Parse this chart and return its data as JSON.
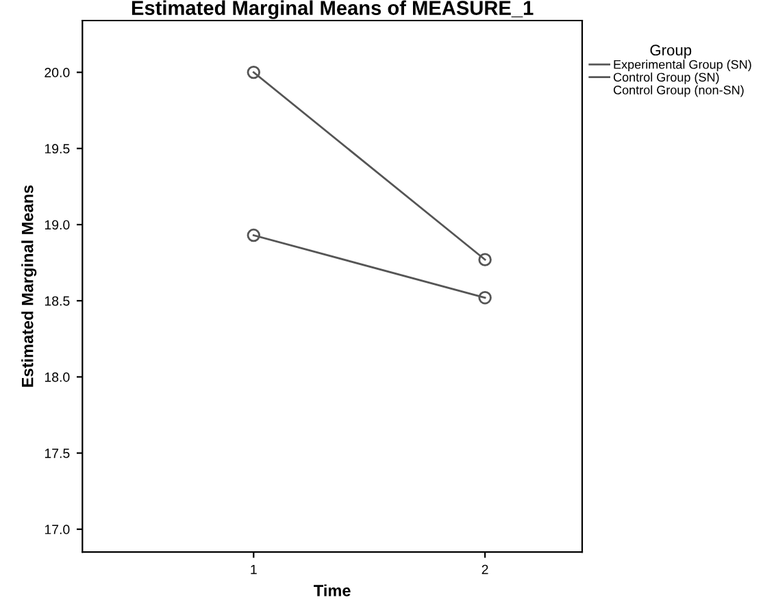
{
  "chart_data": {
    "type": "line",
    "title": "Estimated Marginal Means of MEASURE_1",
    "xlabel": "Time",
    "ylabel": "Estimated Marginal Means",
    "legend_title": "Group",
    "legend": "top right",
    "marker": "circle",
    "line_style": "solid",
    "grid": false,
    "categories": [
      "1",
      "2"
    ],
    "series": [
      {
        "name": "Experimental Group (SN)",
        "color": "#555555",
        "values": [
          20.0,
          18.77
        ]
      },
      {
        "name": "Control Group (SN)",
        "color": "#555555",
        "values": [
          18.93,
          18.52
        ]
      },
      {
        "name": "Control Group (non-SN)",
        "values": [
          null,
          null
        ]
      }
    ],
    "ylim": [
      16.85,
      20.34
    ],
    "yticks": [
      {
        "value": 17.0,
        "label": "17.0"
      },
      {
        "value": 17.5,
        "label": "17.5"
      },
      {
        "value": 18.0,
        "label": "18.0"
      },
      {
        "value": 18.5,
        "label": "18.5"
      },
      {
        "value": 19.0,
        "label": "19.0"
      },
      {
        "value": 19.5,
        "label": "19.5"
      },
      {
        "value": 20.0,
        "label": "20.0"
      }
    ]
  }
}
